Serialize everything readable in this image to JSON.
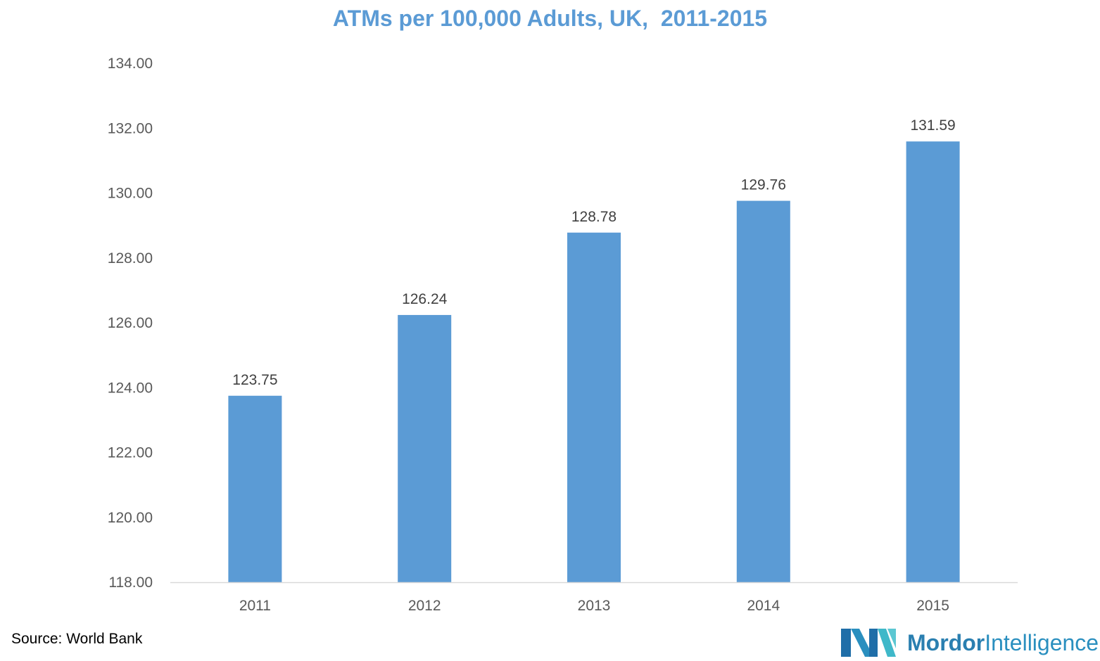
{
  "chart_data": {
    "type": "bar",
    "title": "ATMs per 100,000 Adults, UK,  2011-2015",
    "categories": [
      "2011",
      "2012",
      "2013",
      "2014",
      "2015"
    ],
    "values": [
      123.75,
      126.24,
      128.78,
      129.76,
      131.59
    ],
    "value_labels": [
      "123.75",
      "126.24",
      "128.78",
      "129.76",
      "131.59"
    ],
    "yticks": [
      "118.00",
      "120.00",
      "122.00",
      "124.00",
      "126.00",
      "128.00",
      "130.00",
      "132.00",
      "134.00"
    ],
    "ylim": [
      118,
      134
    ],
    "xlabel": "",
    "ylabel": "",
    "grid": false,
    "bar_color": "#5b9bd5"
  },
  "footer": {
    "source": "Source: World Bank",
    "brand_part1": "Mordor",
    "brand_part2": "Intelligence"
  }
}
